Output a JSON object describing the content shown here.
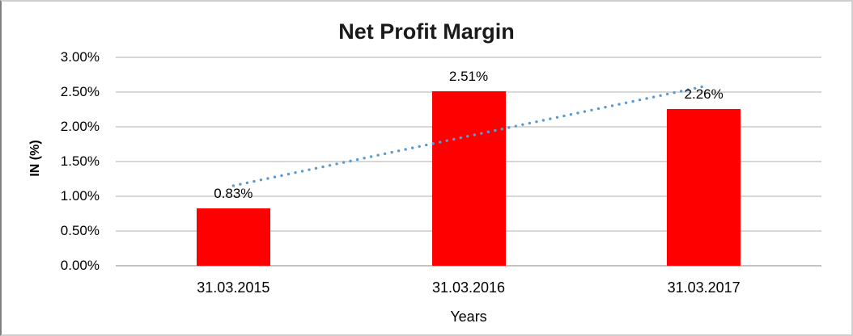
{
  "chart_data": {
    "type": "bar",
    "title": "Net Profit Margin",
    "xlabel": "Years",
    "ylabel": "IN (%)",
    "categories": [
      "31.03.2015",
      "31.03.2016",
      "31.03.2017"
    ],
    "values": [
      0.83,
      2.51,
      2.26
    ],
    "data_labels": [
      "0.83%",
      "2.51%",
      "2.26%"
    ],
    "ylim": [
      0,
      3
    ],
    "ytick_step": 0.5,
    "yticks": [
      "0.00%",
      "0.50%",
      "1.00%",
      "1.50%",
      "2.00%",
      "2.50%",
      "3.00%"
    ],
    "grid": true,
    "legend": "none",
    "bar_color": "#FF0000",
    "gridline_color": "#D7D7D7",
    "axis_line_color": "#C3C3C3",
    "text_color": "#000000",
    "trendline": {
      "type": "linear",
      "style": "dotted",
      "color": "#5B9BD5"
    }
  }
}
